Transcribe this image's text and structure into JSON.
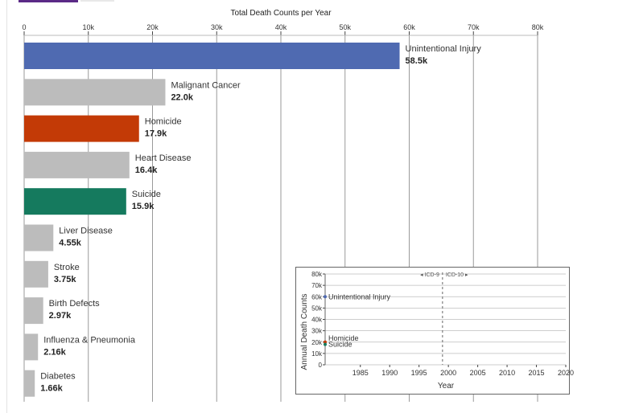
{
  "chart_data": [
    {
      "type": "bar",
      "orientation": "horizontal",
      "title": "Total Death Counts per Year",
      "xlim": [
        0,
        80000
      ],
      "x_ticks": [
        {
          "value": 0,
          "label": "0"
        },
        {
          "value": 10000,
          "label": "10k"
        },
        {
          "value": 20000,
          "label": "20k"
        },
        {
          "value": 30000,
          "label": "30k"
        },
        {
          "value": 40000,
          "label": "40k"
        },
        {
          "value": 50000,
          "label": "50k"
        },
        {
          "value": 60000,
          "label": "60k"
        },
        {
          "value": 70000,
          "label": "70k"
        },
        {
          "value": 80000,
          "label": "80k"
        }
      ],
      "grid": true,
      "bars": [
        {
          "category": "Unintentional Injury",
          "value": 58500,
          "value_label": "58.5k",
          "color": "#4f6ab1"
        },
        {
          "category": "Malignant Cancer",
          "value": 22000,
          "value_label": "22.0k",
          "color": "#bcbcbc"
        },
        {
          "category": "Homicide",
          "value": 17900,
          "value_label": "17.9k",
          "color": "#c33a06"
        },
        {
          "category": "Heart Disease",
          "value": 16400,
          "value_label": "16.4k",
          "color": "#bcbcbc"
        },
        {
          "category": "Suicide",
          "value": 15900,
          "value_label": "15.9k",
          "color": "#157a5e"
        },
        {
          "category": "Liver Disease",
          "value": 4550,
          "value_label": "4.55k",
          "color": "#bcbcbc"
        },
        {
          "category": "Stroke",
          "value": 3750,
          "value_label": "3.75k",
          "color": "#bcbcbc"
        },
        {
          "category": "Birth Defects",
          "value": 2970,
          "value_label": "2.97k",
          "color": "#bcbcbc"
        },
        {
          "category": "Influenza & Pneumonia",
          "value": 2160,
          "value_label": "2.16k",
          "color": "#bcbcbc"
        },
        {
          "category": "Diabetes",
          "value": 1660,
          "value_label": "1.66k",
          "color": "#bcbcbc"
        }
      ]
    },
    {
      "type": "line",
      "xlabel": "Year",
      "ylabel": "Annual Death Counts",
      "xlim": [
        1979,
        2020
      ],
      "ylim": [
        0,
        80000
      ],
      "x_ticks": [
        {
          "value": 1985,
          "label": "1985"
        },
        {
          "value": 1990,
          "label": "1990"
        },
        {
          "value": 1995,
          "label": "1995"
        },
        {
          "value": 2000,
          "label": "2000"
        },
        {
          "value": 2005,
          "label": "2005"
        },
        {
          "value": 2010,
          "label": "2010"
        },
        {
          "value": 2015,
          "label": "2015"
        },
        {
          "value": 2020,
          "label": "2020"
        }
      ],
      "y_ticks": [
        {
          "value": 0,
          "label": "0"
        },
        {
          "value": 10000,
          "label": "10k"
        },
        {
          "value": 20000,
          "label": "20k"
        },
        {
          "value": 30000,
          "label": "30k"
        },
        {
          "value": 40000,
          "label": "40k"
        },
        {
          "value": 50000,
          "label": "50k"
        },
        {
          "value": 60000,
          "label": "60k"
        },
        {
          "value": 70000,
          "label": "70k"
        },
        {
          "value": 80000,
          "label": "80k"
        }
      ],
      "grid": true,
      "markers": {
        "year": 1999,
        "left_label": "◂ ICD-9",
        "right_label": "ICD-10 ▸"
      },
      "series": [
        {
          "name": "Unintentional Injury",
          "x": [
            1979
          ],
          "y": [
            60000
          ],
          "color": "#4f6ab1"
        },
        {
          "name": "Homicide",
          "x": [
            1979
          ],
          "y": [
            20000
          ],
          "color": "#c33a06"
        },
        {
          "name": "Suicide",
          "x": [
            1979
          ],
          "y": [
            18000
          ],
          "color": "#157a5e"
        }
      ]
    }
  ]
}
